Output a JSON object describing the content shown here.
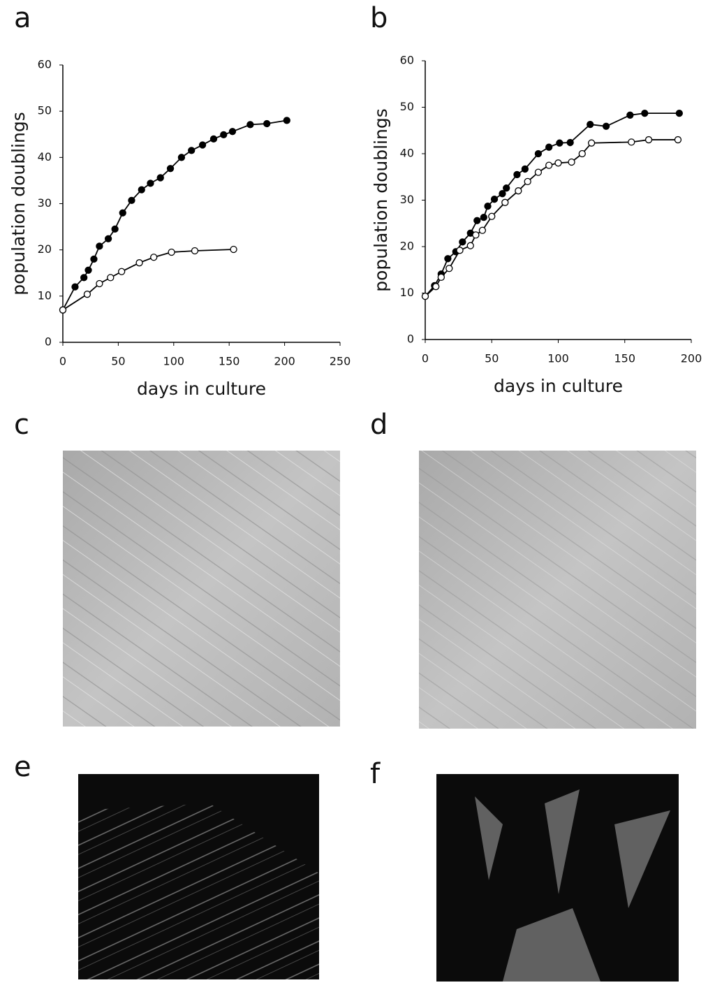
{
  "chart_data": [
    {
      "type": "line",
      "label": "a",
      "x_label": "days in culture",
      "y_label": "population doublings",
      "xlim": [
        0,
        250
      ],
      "xticks": [
        0,
        50,
        100,
        150,
        200,
        250
      ],
      "ylim": [
        0,
        60
      ],
      "yticks": [
        0,
        10,
        20,
        30,
        40,
        50,
        60
      ],
      "series": [
        {
          "color": "#000000",
          "marker_fill": "#000000",
          "x": [
            0,
            11,
            19,
            23,
            28,
            33,
            41,
            47,
            54,
            62,
            71,
            79,
            88,
            97,
            107,
            116,
            126,
            136,
            145,
            153,
            169,
            184,
            202
          ],
          "values": [
            7,
            12,
            14,
            15.6,
            18,
            20.8,
            22.4,
            24.5,
            28,
            30.7,
            33,
            34.4,
            35.6,
            37.6,
            40,
            41.5,
            42.7,
            44,
            44.9,
            45.6,
            47.1,
            47.3,
            48
          ]
        },
        {
          "color": "#000000",
          "marker_fill": "#ffffff",
          "x": [
            0,
            22,
            33,
            43,
            53,
            69,
            82,
            98,
            119,
            154
          ],
          "values": [
            7,
            10.4,
            12.7,
            14,
            15.3,
            17.2,
            18.4,
            19.5,
            19.8,
            20.1
          ]
        }
      ]
    },
    {
      "type": "line",
      "label": "b",
      "x_label": "days in culture",
      "y_label": "population doublings",
      "xlim": [
        0,
        200
      ],
      "xticks": [
        0,
        50,
        100,
        150,
        200
      ],
      "ylim": [
        0,
        60
      ],
      "yticks": [
        0,
        10,
        20,
        30,
        40,
        50,
        60
      ],
      "series": [
        {
          "color": "#000000",
          "marker_fill": "#000000",
          "x": [
            0,
            7,
            12,
            17,
            23,
            28,
            34,
            39,
            44,
            47,
            52,
            58,
            61,
            69,
            75,
            85,
            93,
            101,
            109,
            124,
            136,
            154,
            165,
            191
          ],
          "values": [
            9.3,
            11.6,
            14.1,
            17.4,
            18.9,
            21,
            22.9,
            25.6,
            26.3,
            28.7,
            30.2,
            31.4,
            32.6,
            35.5,
            36.7,
            40,
            41.4,
            42.3,
            42.4,
            46.3,
            45.9,
            48.3,
            48.7,
            48.7
          ]
        },
        {
          "color": "#000000",
          "marker_fill": "#ffffff",
          "x": [
            0,
            8,
            12,
            18,
            26,
            34,
            38,
            43,
            50,
            60,
            70,
            77,
            85,
            93,
            100,
            110,
            118,
            125,
            155,
            168,
            190
          ],
          "values": [
            9.3,
            11.4,
            13.4,
            15.3,
            19.2,
            20.2,
            22.5,
            23.5,
            26.5,
            29.5,
            32,
            34,
            36,
            37.5,
            38,
            38.2,
            40,
            42.3,
            42.5,
            43,
            43
          ]
        }
      ]
    }
  ],
  "image_panels": [
    {
      "label": "c"
    },
    {
      "label": "d"
    },
    {
      "label": "e"
    },
    {
      "label": "f"
    }
  ]
}
